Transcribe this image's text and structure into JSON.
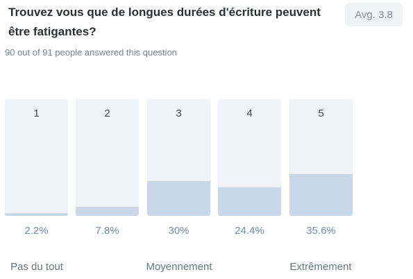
{
  "question": {
    "title": "Trouvez vous que de longues durées d'écriture peuvent être fatigantes?",
    "average_badge": "Avg. 3.8",
    "responses_text": "90 out of 91 people answered this question"
  },
  "options": [
    {
      "number": "1",
      "percent_label": "2.2%",
      "fraction": 0.022
    },
    {
      "number": "2",
      "percent_label": "7.8%",
      "fraction": 0.078
    },
    {
      "number": "3",
      "percent_label": "30%",
      "fraction": 0.3
    },
    {
      "number": "4",
      "percent_label": "24.4%",
      "fraction": 0.244
    },
    {
      "number": "5",
      "percent_label": "35.6%",
      "fraction": 0.356
    }
  ],
  "scale_labels": {
    "low": "Pas du tout",
    "mid": "Moyennement",
    "high": "Extrêmement"
  },
  "colors": {
    "bar_background": "#f0f3f8",
    "bar_fill": "#c9d8e8",
    "percent_text": "#6d8db0"
  }
}
